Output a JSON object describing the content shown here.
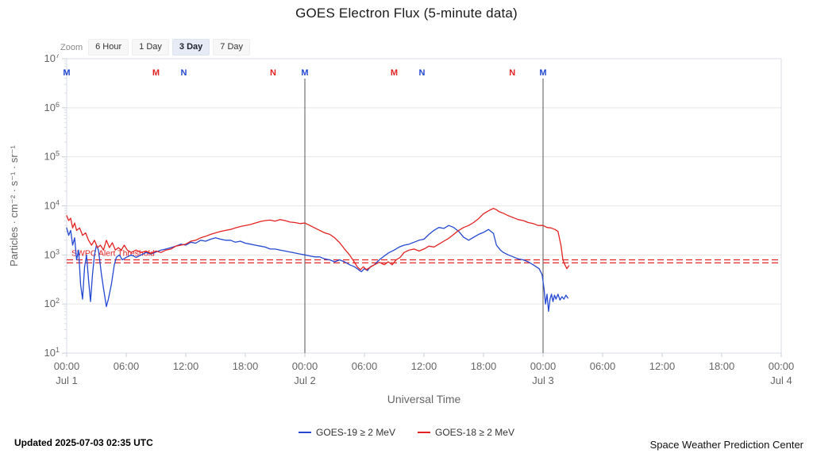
{
  "title": "GOES Electron Flux (5-minute data)",
  "zoom": {
    "label": "Zoom",
    "buttons": [
      {
        "label": "6 Hour",
        "selected": false
      },
      {
        "label": "1 Day",
        "selected": false
      },
      {
        "label": "3 Day",
        "selected": true
      },
      {
        "label": "7 Day",
        "selected": false
      }
    ]
  },
  "footer": {
    "updated": "Updated 2025-07-03 02:35 UTC",
    "credit": "Space Weather Prediction Center"
  },
  "chart_data": {
    "type": "line",
    "title": "GOES Electron Flux (5-minute data)",
    "xlabel": "Universal Time",
    "ylabel": "Particles · cm⁻² · s⁻¹ · sr⁻¹",
    "y_scale": "log10",
    "ylim_log": [
      1,
      7
    ],
    "x_hours_range": [
      0,
      72
    ],
    "grid": "horizontal",
    "legend_position": "bottom",
    "y_ticks": [
      7,
      6,
      5,
      4,
      3,
      2,
      1
    ],
    "x_ticks": [
      {
        "hour": 0,
        "time": "00:00",
        "date": "Jul 1"
      },
      {
        "hour": 6,
        "time": "06:00"
      },
      {
        "hour": 12,
        "time": "12:00"
      },
      {
        "hour": 18,
        "time": "18:00"
      },
      {
        "hour": 24,
        "time": "00:00",
        "date": "Jul 2"
      },
      {
        "hour": 30,
        "time": "06:00"
      },
      {
        "hour": 36,
        "time": "12:00"
      },
      {
        "hour": 42,
        "time": "18:00"
      },
      {
        "hour": 48,
        "time": "00:00",
        "date": "Jul 3"
      },
      {
        "hour": 54,
        "time": "06:00"
      },
      {
        "hour": 60,
        "time": "12:00"
      },
      {
        "hour": 66,
        "time": "18:00"
      },
      {
        "hour": 72,
        "time": "00:00",
        "date": "Jul 4"
      }
    ],
    "plot_lines": {
      "hours": [
        24,
        48
      ],
      "color": "#555555"
    },
    "threshold": {
      "label": "SWPC Alert Threshold",
      "log_values": [
        2.9,
        2.84
      ],
      "color": "#e32222"
    },
    "event_markers": [
      {
        "letter": "M",
        "hour": 0,
        "color": "#2448d1"
      },
      {
        "letter": "M",
        "hour": 9.0,
        "color": "#e32222"
      },
      {
        "letter": "N",
        "hour": 11.8,
        "color": "#2448d1"
      },
      {
        "letter": "N",
        "hour": 20.8,
        "color": "#e32222"
      },
      {
        "letter": "M",
        "hour": 24,
        "color": "#2448d1"
      },
      {
        "letter": "M",
        "hour": 33.0,
        "color": "#e32222"
      },
      {
        "letter": "N",
        "hour": 35.8,
        "color": "#2448d1"
      },
      {
        "letter": "N",
        "hour": 44.9,
        "color": "#e32222"
      },
      {
        "letter": "M",
        "hour": 48,
        "color": "#2448d1"
      }
    ],
    "series": [
      {
        "name": "GOES-19 ≥ 2 MeV",
        "color": "#2448d1",
        "points_format": "[hour_from_Jul1_00UT, log10_flux]",
        "points": [
          [
            0,
            3.55
          ],
          [
            0.2,
            3.4
          ],
          [
            0.4,
            3.5
          ],
          [
            0.6,
            3.2
          ],
          [
            0.8,
            3.35
          ],
          [
            1.0,
            2.9
          ],
          [
            1.2,
            3.1
          ],
          [
            1.4,
            2.4
          ],
          [
            1.6,
            2.1
          ],
          [
            1.8,
            2.75
          ],
          [
            2.0,
            3.0
          ],
          [
            2.2,
            2.5
          ],
          [
            2.4,
            2.05
          ],
          [
            2.6,
            2.6
          ],
          [
            2.8,
            3.0
          ],
          [
            3.0,
            3.2
          ],
          [
            3.2,
            3.1
          ],
          [
            3.5,
            2.6
          ],
          [
            3.8,
            2.2
          ],
          [
            4.0,
            1.95
          ],
          [
            4.2,
            2.1
          ],
          [
            4.5,
            2.4
          ],
          [
            4.8,
            2.8
          ],
          [
            5.0,
            2.95
          ],
          [
            5.3,
            3.0
          ],
          [
            5.6,
            2.9
          ],
          [
            6.0,
            2.95
          ],
          [
            6.5,
            3.0
          ],
          [
            7.0,
            2.95
          ],
          [
            7.5,
            3.0
          ],
          [
            8.0,
            3.05
          ],
          [
            8.5,
            3.02
          ],
          [
            9.0,
            3.06
          ],
          [
            9.5,
            3.1
          ],
          [
            10.0,
            3.12
          ],
          [
            10.5,
            3.15
          ],
          [
            11.0,
            3.18
          ],
          [
            11.5,
            3.22
          ],
          [
            12.0,
            3.2
          ],
          [
            12.5,
            3.26
          ],
          [
            13.0,
            3.24
          ],
          [
            13.5,
            3.3
          ],
          [
            14.0,
            3.28
          ],
          [
            14.5,
            3.32
          ],
          [
            15.0,
            3.35
          ],
          [
            15.5,
            3.32
          ],
          [
            16.0,
            3.3
          ],
          [
            16.5,
            3.3
          ],
          [
            17.0,
            3.26
          ],
          [
            17.5,
            3.28
          ],
          [
            18.0,
            3.24
          ],
          [
            18.5,
            3.22
          ],
          [
            19.0,
            3.2
          ],
          [
            19.5,
            3.18
          ],
          [
            20.0,
            3.16
          ],
          [
            20.5,
            3.12
          ],
          [
            21.0,
            3.12
          ],
          [
            21.5,
            3.1
          ],
          [
            22.0,
            3.08
          ],
          [
            22.5,
            3.06
          ],
          [
            23.0,
            3.04
          ],
          [
            23.5,
            3.02
          ],
          [
            24.0,
            3.0
          ],
          [
            24.5,
            2.98
          ],
          [
            25.0,
            2.96
          ],
          [
            25.5,
            2.96
          ],
          [
            26.0,
            2.92
          ],
          [
            26.5,
            2.9
          ],
          [
            27.0,
            2.86
          ],
          [
            27.5,
            2.9
          ],
          [
            28.0,
            2.86
          ],
          [
            28.5,
            2.8
          ],
          [
            29.0,
            2.76
          ],
          [
            29.4,
            2.7
          ],
          [
            29.7,
            2.66
          ],
          [
            30.0,
            2.72
          ],
          [
            30.3,
            2.68
          ],
          [
            30.6,
            2.76
          ],
          [
            31.0,
            2.8
          ],
          [
            31.5,
            2.9
          ],
          [
            32.0,
            2.98
          ],
          [
            32.5,
            3.05
          ],
          [
            33.0,
            3.1
          ],
          [
            33.5,
            3.16
          ],
          [
            34.0,
            3.2
          ],
          [
            34.5,
            3.22
          ],
          [
            35.0,
            3.26
          ],
          [
            35.5,
            3.3
          ],
          [
            36.0,
            3.32
          ],
          [
            36.5,
            3.42
          ],
          [
            37.0,
            3.5
          ],
          [
            37.5,
            3.56
          ],
          [
            38.0,
            3.54
          ],
          [
            38.5,
            3.6
          ],
          [
            39.0,
            3.56
          ],
          [
            39.5,
            3.48
          ],
          [
            40.0,
            3.36
          ],
          [
            40.5,
            3.3
          ],
          [
            41.0,
            3.36
          ],
          [
            41.5,
            3.42
          ],
          [
            42.0,
            3.46
          ],
          [
            42.5,
            3.52
          ],
          [
            43.0,
            3.44
          ],
          [
            43.3,
            3.2
          ],
          [
            43.7,
            3.1
          ],
          [
            44.0,
            3.05
          ],
          [
            44.5,
            3.0
          ],
          [
            45.0,
            2.96
          ],
          [
            45.5,
            2.92
          ],
          [
            46.0,
            2.9
          ],
          [
            46.5,
            2.86
          ],
          [
            47.0,
            2.8
          ],
          [
            47.3,
            2.76
          ],
          [
            47.6,
            2.72
          ],
          [
            47.9,
            2.6
          ],
          [
            48.1,
            2.3
          ],
          [
            48.25,
            2.0
          ],
          [
            48.4,
            2.2
          ],
          [
            48.55,
            1.85
          ],
          [
            48.7,
            2.1
          ],
          [
            48.85,
            2.2
          ],
          [
            49.0,
            2.05
          ],
          [
            49.15,
            2.18
          ],
          [
            49.3,
            2.1
          ],
          [
            49.5,
            2.2
          ],
          [
            49.7,
            2.08
          ],
          [
            49.9,
            2.15
          ],
          [
            50.1,
            2.1
          ],
          [
            50.3,
            2.18
          ],
          [
            50.5,
            2.12
          ]
        ]
      },
      {
        "name": "GOES-18 ≥ 2 MeV",
        "color": "#e32222",
        "points_format": "[hour_from_Jul1_00UT, log10_flux]",
        "points": [
          [
            0,
            3.8
          ],
          [
            0.2,
            3.7
          ],
          [
            0.4,
            3.75
          ],
          [
            0.6,
            3.55
          ],
          [
            0.8,
            3.65
          ],
          [
            1.0,
            3.5
          ],
          [
            1.3,
            3.55
          ],
          [
            1.6,
            3.4
          ],
          [
            1.9,
            3.45
          ],
          [
            2.2,
            3.3
          ],
          [
            2.5,
            3.2
          ],
          [
            2.8,
            3.3
          ],
          [
            3.1,
            3.15
          ],
          [
            3.4,
            3.2
          ],
          [
            3.7,
            3.1
          ],
          [
            4.0,
            3.3
          ],
          [
            4.3,
            3.15
          ],
          [
            4.6,
            3.25
          ],
          [
            4.9,
            3.1
          ],
          [
            5.2,
            3.15
          ],
          [
            5.5,
            3.1
          ],
          [
            5.8,
            3.2
          ],
          [
            6.1,
            3.1
          ],
          [
            6.5,
            3.05
          ],
          [
            7.0,
            3.1
          ],
          [
            7.5,
            3.05
          ],
          [
            8.0,
            3.08
          ],
          [
            8.5,
            3.03
          ],
          [
            9.0,
            3.08
          ],
          [
            9.5,
            3.05
          ],
          [
            10.0,
            3.1
          ],
          [
            10.5,
            3.12
          ],
          [
            11.0,
            3.18
          ],
          [
            11.5,
            3.2
          ],
          [
            12.0,
            3.22
          ],
          [
            12.5,
            3.28
          ],
          [
            13.0,
            3.3
          ],
          [
            13.5,
            3.35
          ],
          [
            14.0,
            3.38
          ],
          [
            14.5,
            3.42
          ],
          [
            15.0,
            3.45
          ],
          [
            15.5,
            3.48
          ],
          [
            16.0,
            3.5
          ],
          [
            16.5,
            3.52
          ],
          [
            17.0,
            3.55
          ],
          [
            17.5,
            3.58
          ],
          [
            18.0,
            3.6
          ],
          [
            18.5,
            3.62
          ],
          [
            19.0,
            3.65
          ],
          [
            19.5,
            3.68
          ],
          [
            20.0,
            3.7
          ],
          [
            20.5,
            3.71
          ],
          [
            21.0,
            3.69
          ],
          [
            21.5,
            3.72
          ],
          [
            22.0,
            3.7
          ],
          [
            22.5,
            3.67
          ],
          [
            23.0,
            3.66
          ],
          [
            23.5,
            3.64
          ],
          [
            24.0,
            3.65
          ],
          [
            24.5,
            3.6
          ],
          [
            25.0,
            3.55
          ],
          [
            25.5,
            3.5
          ],
          [
            26.0,
            3.45
          ],
          [
            26.5,
            3.42
          ],
          [
            27.0,
            3.35
          ],
          [
            27.5,
            3.25
          ],
          [
            28.0,
            3.12
          ],
          [
            28.5,
            3.0
          ],
          [
            29.0,
            2.85
          ],
          [
            29.3,
            2.75
          ],
          [
            29.6,
            2.7
          ],
          [
            29.9,
            2.76
          ],
          [
            30.2,
            2.7
          ],
          [
            30.5,
            2.74
          ],
          [
            31.0,
            2.8
          ],
          [
            31.5,
            2.85
          ],
          [
            32.0,
            2.8
          ],
          [
            32.4,
            2.86
          ],
          [
            32.8,
            2.8
          ],
          [
            33.2,
            2.9
          ],
          [
            33.6,
            2.95
          ],
          [
            34.0,
            3.05
          ],
          [
            34.5,
            3.1
          ],
          [
            35.0,
            3.12
          ],
          [
            35.5,
            3.08
          ],
          [
            36.0,
            3.12
          ],
          [
            36.5,
            3.18
          ],
          [
            37.0,
            3.16
          ],
          [
            37.5,
            3.22
          ],
          [
            38.0,
            3.28
          ],
          [
            38.5,
            3.34
          ],
          [
            39.0,
            3.42
          ],
          [
            39.5,
            3.5
          ],
          [
            40.0,
            3.56
          ],
          [
            40.5,
            3.6
          ],
          [
            41.0,
            3.66
          ],
          [
            41.5,
            3.74
          ],
          [
            42.0,
            3.84
          ],
          [
            42.5,
            3.9
          ],
          [
            43.0,
            3.95
          ],
          [
            43.3,
            3.92
          ],
          [
            43.6,
            3.88
          ],
          [
            44.0,
            3.85
          ],
          [
            44.5,
            3.8
          ],
          [
            45.0,
            3.76
          ],
          [
            45.5,
            3.72
          ],
          [
            46.0,
            3.7
          ],
          [
            46.5,
            3.66
          ],
          [
            47.0,
            3.64
          ],
          [
            47.5,
            3.6
          ],
          [
            48.0,
            3.6
          ],
          [
            48.4,
            3.56
          ],
          [
            48.8,
            3.55
          ],
          [
            49.2,
            3.52
          ],
          [
            49.5,
            3.48
          ],
          [
            49.8,
            3.2
          ],
          [
            50.0,
            2.9
          ],
          [
            50.2,
            2.8
          ],
          [
            50.4,
            2.72
          ],
          [
            50.6,
            2.78
          ]
        ]
      }
    ]
  }
}
